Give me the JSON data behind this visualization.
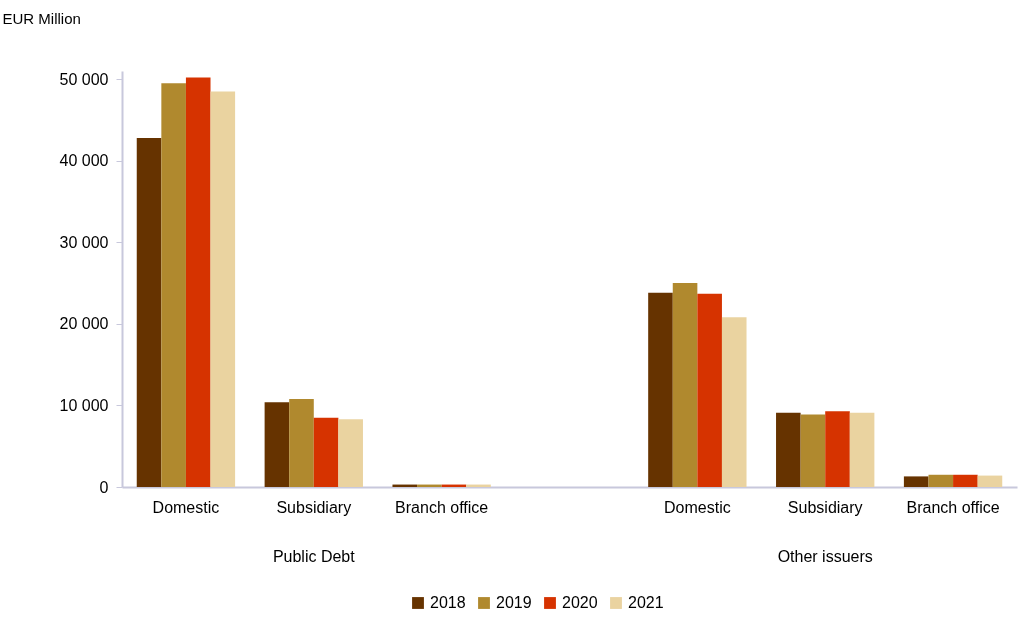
{
  "chart_data": {
    "type": "bar",
    "ylabel": "EUR Million",
    "categories": [
      "Domestic",
      "Subsidiary",
      "Branch office",
      null,
      "Domestic",
      "Subsidiary",
      "Branch office"
    ],
    "series": [
      {
        "name": "2018",
        "color": "#663300",
        "values": [
          42800,
          10400,
          300,
          null,
          23800,
          9100,
          1300
        ]
      },
      {
        "name": "2019",
        "color": "#b0892e",
        "values": [
          49500,
          10800,
          300,
          null,
          25000,
          8900,
          1500
        ]
      },
      {
        "name": "2020",
        "color": "#d63300",
        "values": [
          50200,
          8500,
          300,
          null,
          23700,
          9300,
          1500
        ]
      },
      {
        "name": "2021",
        "color": "#ead3a0",
        "values": [
          48500,
          8300,
          300,
          null,
          20800,
          9100,
          1400
        ]
      }
    ],
    "ylim": [
      0,
      51000
    ],
    "yticks": [
      {
        "value": 0,
        "label": "0"
      },
      {
        "value": 10000,
        "label": "10 000"
      },
      {
        "value": 20000,
        "label": "20 000"
      },
      {
        "value": 30000,
        "label": "30 000"
      },
      {
        "value": 40000,
        "label": "40 000"
      },
      {
        "value": 50000,
        "label": "50 000"
      }
    ],
    "annotations": [
      "Public Debt",
      "Other issuers"
    ],
    "grid": false,
    "legend": "bottom"
  }
}
